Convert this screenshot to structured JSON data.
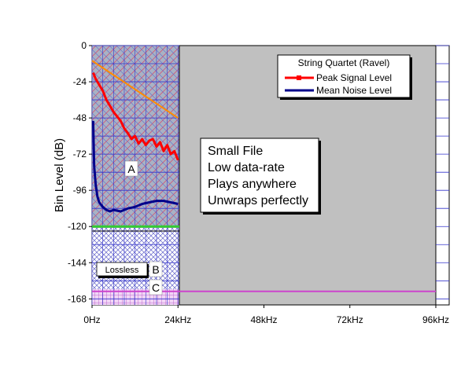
{
  "chart_data": {
    "type": "line",
    "ylabel": "Bin Level (dB)",
    "xlabel": "",
    "xlim": [
      0,
      96
    ],
    "ylim": [
      -172,
      0
    ],
    "x_ticks": [
      "0Hz",
      "24kHz",
      "48kHz",
      "72kHz",
      "96kHz"
    ],
    "y_ticks": [
      "0",
      "-24",
      "-48",
      "-72",
      "-96",
      "-120",
      "-144",
      "-168"
    ],
    "legend": {
      "title": "String Quartet (Ravel)",
      "placement": "top-right",
      "entries": [
        "Peak Signal Level",
        "Mean Noise Level"
      ]
    },
    "series": [
      {
        "name": "Peak Signal Level",
        "color": "#ff0000",
        "points": [
          [
            0.3,
            -18
          ],
          [
            1,
            -22
          ],
          [
            2,
            -26
          ],
          [
            3,
            -30
          ],
          [
            4,
            -36
          ],
          [
            5,
            -40
          ],
          [
            6,
            -44
          ],
          [
            7,
            -47
          ],
          [
            8,
            -50
          ],
          [
            9,
            -55
          ],
          [
            10,
            -58
          ],
          [
            11,
            -62
          ],
          [
            12,
            -60
          ],
          [
            13,
            -65
          ],
          [
            14,
            -62
          ],
          [
            15,
            -66
          ],
          [
            16,
            -63
          ],
          [
            17,
            -62
          ],
          [
            18,
            -67
          ],
          [
            19,
            -64
          ],
          [
            20,
            -70
          ],
          [
            21,
            -66
          ],
          [
            22,
            -72
          ],
          [
            23,
            -70
          ],
          [
            24,
            -76
          ]
        ]
      },
      {
        "name": "Mean Noise Level",
        "color": "#00008b",
        "points": [
          [
            0.3,
            -50
          ],
          [
            0.6,
            -80
          ],
          [
            1,
            -92
          ],
          [
            1.5,
            -100
          ],
          [
            2,
            -104
          ],
          [
            3,
            -107
          ],
          [
            4,
            -109
          ],
          [
            5,
            -110
          ],
          [
            6,
            -109
          ],
          [
            8,
            -110
          ],
          [
            10,
            -108
          ],
          [
            12,
            -107
          ],
          [
            14,
            -105
          ],
          [
            16,
            -104
          ],
          [
            18,
            -103
          ],
          [
            20,
            -103
          ],
          [
            22,
            -104
          ],
          [
            24,
            -105
          ]
        ]
      },
      {
        "name": "",
        "color": "#ff8c00",
        "points": [
          [
            0,
            -10
          ],
          [
            24,
            -48
          ]
        ]
      }
    ],
    "annotations": [
      {
        "text": "A"
      },
      {
        "text": "B"
      },
      {
        "text": "C"
      },
      {
        "text": "Lossless"
      }
    ],
    "text_box": [
      "Small File",
      "Low data-rate",
      "Plays anywhere",
      "Unwraps perfectly"
    ],
    "colors": {
      "shaded_region": "#c0c0c0",
      "grid": "#3333cc",
      "band_green": "#33cc33",
      "band_magenta": "#cc44cc"
    }
  }
}
